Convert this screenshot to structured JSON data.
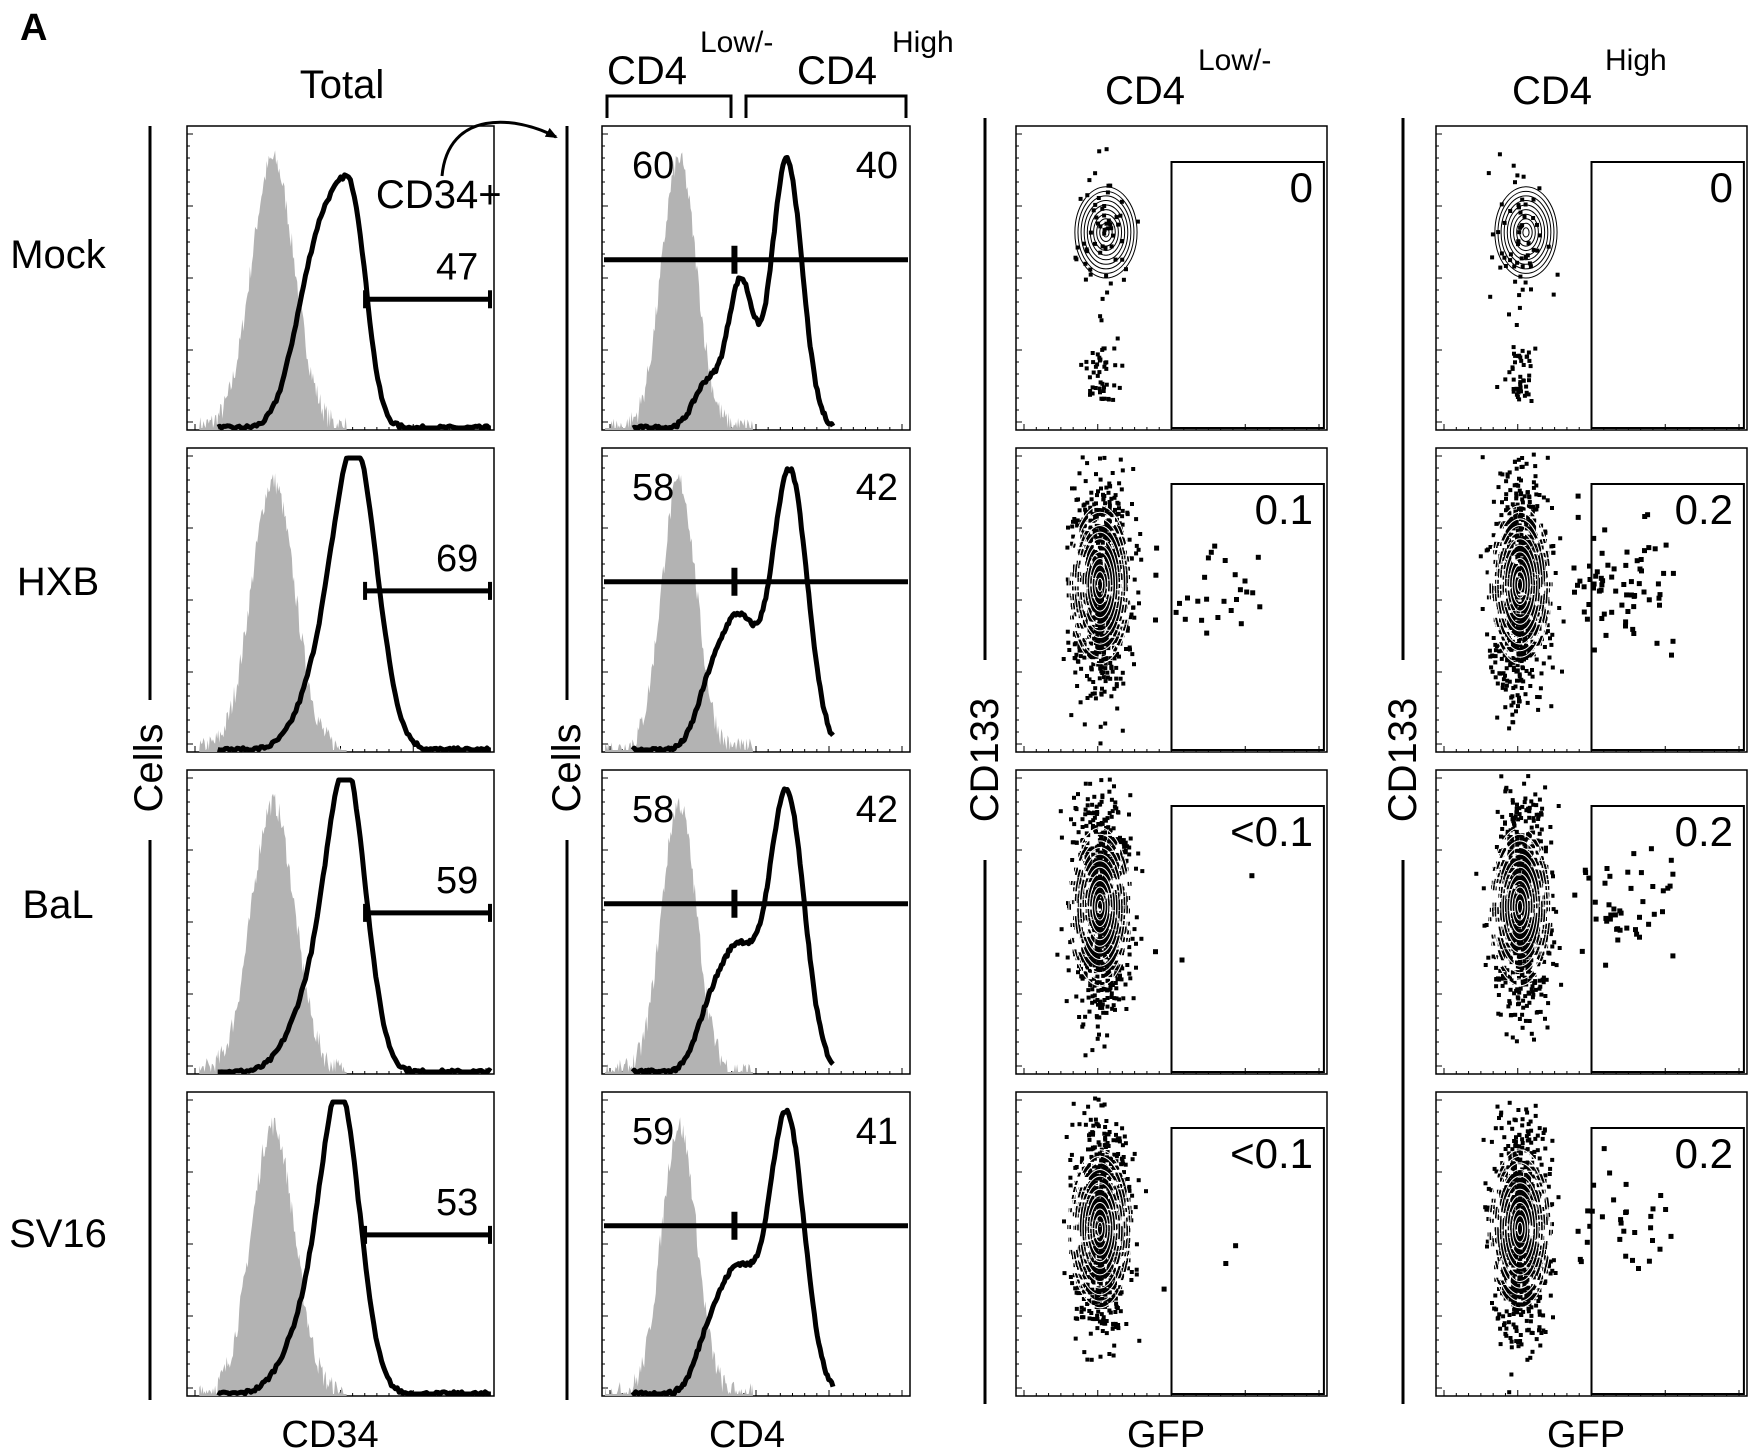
{
  "figure": {
    "panel_letter": "A",
    "columns": {
      "total": "Total",
      "cd4": {
        "low_base": "CD4",
        "low_sup": "Low/-",
        "high_base": "CD4",
        "high_sup": "High"
      },
      "low": {
        "base": "CD4",
        "sup": "Low/-"
      },
      "high": {
        "base": "CD4",
        "sup": "High"
      }
    },
    "rows": [
      "Mock",
      "HXB",
      "BaL",
      "SV16"
    ],
    "axis_labels": {
      "cells_1": "Cells",
      "cells_2": "Cells",
      "cd133_1": "CD133",
      "cd133_2": "CD133",
      "x_1": "CD34",
      "x_2": "CD4",
      "x_3": "GFP",
      "x_4": "GFP"
    },
    "gate_annotation": "CD34+"
  },
  "colors": {
    "isotype_fill": "#b3b3b3",
    "line": "#000000",
    "background": "#ffffff"
  },
  "chart_data": [
    {
      "type": "histogram",
      "x_axis": "CD34",
      "y_axis": "Cells",
      "gate": "CD34+",
      "series": [
        {
          "name": "Mock",
          "gate_percent": "47"
        },
        {
          "name": "HXB",
          "gate_percent": "69"
        },
        {
          "name": "BaL",
          "gate_percent": "59"
        },
        {
          "name": "SV16",
          "gate_percent": "53"
        }
      ]
    },
    {
      "type": "histogram",
      "x_axis": "CD4",
      "y_axis": "Cells",
      "gates": [
        "CD4 Low/-",
        "CD4 High"
      ],
      "series": [
        {
          "name": "Mock",
          "low_percent": "60",
          "high_percent": "40"
        },
        {
          "name": "HXB",
          "low_percent": "58",
          "high_percent": "42"
        },
        {
          "name": "BaL",
          "low_percent": "58",
          "high_percent": "42"
        },
        {
          "name": "SV16",
          "low_percent": "59",
          "high_percent": "41"
        }
      ]
    },
    {
      "type": "scatter",
      "subset": "CD4 Low/-",
      "x_axis": "GFP",
      "y_axis": "CD133",
      "series": [
        {
          "name": "Mock",
          "gate_percent": "0"
        },
        {
          "name": "HXB",
          "gate_percent": "0.1"
        },
        {
          "name": "BaL",
          "gate_percent": "<0.1"
        },
        {
          "name": "SV16",
          "gate_percent": "<0.1"
        }
      ]
    },
    {
      "type": "scatter",
      "subset": "CD4 High",
      "x_axis": "GFP",
      "y_axis": "CD133",
      "series": [
        {
          "name": "Mock",
          "gate_percent": "0"
        },
        {
          "name": "HXB",
          "gate_percent": "0.2"
        },
        {
          "name": "BaL",
          "gate_percent": "0.2"
        },
        {
          "name": "SV16",
          "gate_percent": "0.2"
        }
      ]
    }
  ]
}
